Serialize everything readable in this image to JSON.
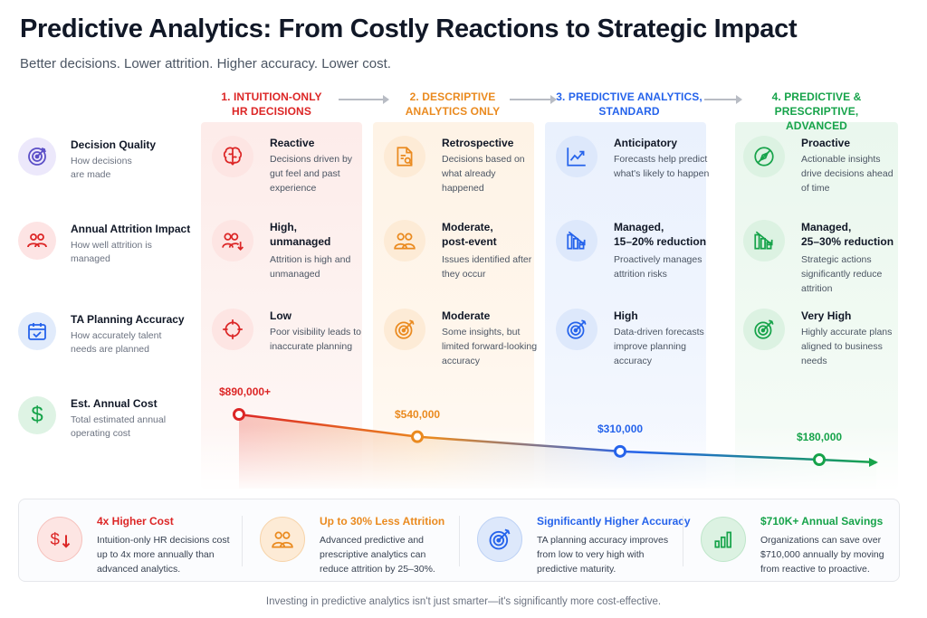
{
  "header": {
    "title": "Predictive Analytics: From Costly Reactions to Strategic Impact",
    "subtitle": "Better decisions. Lower attrition. Higher accuracy. Lower cost."
  },
  "stages": [
    {
      "label": "1. INTUITION-ONLY\nHR DECISIONS",
      "color": "#dc2626"
    },
    {
      "label": "2. DESCRIPTIVE\nANALYTICS ONLY",
      "color": "#ea8a1f"
    },
    {
      "label": "3. PREDICTIVE ANALYTICS,\nSTANDARD",
      "color": "#2563eb"
    },
    {
      "label": "4. PREDICTIVE & PRESCRIPTIVE,\nADVANCED",
      "color": "#16a34a"
    }
  ],
  "rows": [
    {
      "title": "Decision Quality",
      "desc": "How decisions are made",
      "icon": "target-icon"
    },
    {
      "title": "Annual Attrition Impact",
      "desc": "How well attrition is managed",
      "icon": "people-icon"
    },
    {
      "title": "TA Planning Accuracy",
      "desc": "How accurately talent needs are planned",
      "icon": "calendar-check-icon"
    },
    {
      "title": "Est. Annual Cost",
      "desc": "Total estimated annual operating cost",
      "icon": "dollar-icon"
    }
  ],
  "cells": [
    [
      {
        "title": "Reactive",
        "desc": "Decisions driven by gut feel and past experience",
        "icon": "brain-icon"
      },
      {
        "title": "Retrospective",
        "desc": "Decisions based on what already happened",
        "icon": "report-search-icon"
      },
      {
        "title": "Anticipatory",
        "desc": "Forecasts help predict what's likely to happen",
        "icon": "trend-up-icon"
      },
      {
        "title": "Proactive",
        "desc": "Actionable insights drive decisions ahead of time",
        "icon": "compass-icon"
      }
    ],
    [
      {
        "title": "High,\nunmanaged",
        "desc": "Attrition is high and unmanaged",
        "icon": "people-down-icon"
      },
      {
        "title": "Moderate,\npost-event",
        "desc": "Issues identified after they occur",
        "icon": "people-icon"
      },
      {
        "title": "Managed,\n15–20% reduction",
        "desc": "Proactively manages attrition risks",
        "icon": "bars-down-icon"
      },
      {
        "title": "Managed,\n25–30% reduction",
        "desc": "Strategic actions significantly reduce attrition",
        "icon": "bars-down-icon"
      }
    ],
    [
      {
        "title": "Low",
        "desc": "Poor visibility leads to inaccurate planning",
        "icon": "crosshair-icon"
      },
      {
        "title": "Moderate",
        "desc": "Some insights, but limited forward-looking accuracy",
        "icon": "target-arrow-icon"
      },
      {
        "title": "High",
        "desc": "Data-driven forecasts improve planning accuracy",
        "icon": "target-arrow-icon"
      },
      {
        "title": "Very High",
        "desc": "Highly accurate plans aligned to business needs",
        "icon": "target-arrow-icon"
      }
    ]
  ],
  "costs": [
    {
      "label": "$890,000+",
      "value": 890000,
      "color": "#dc2626"
    },
    {
      "label": "$540,000",
      "value": 540000,
      "color": "#ea8a1f"
    },
    {
      "label": "$310,000",
      "value": 310000,
      "color": "#2563eb"
    },
    {
      "label": "$180,000",
      "value": 180000,
      "color": "#16a34a"
    }
  ],
  "summary": [
    {
      "title": "4x Higher Cost",
      "desc": "Intuition-only HR decisions cost up to 4x more annually than advanced analytics.",
      "color": "#dc2626",
      "icon": "dollar-down-icon"
    },
    {
      "title": "Up to 30% Less Attrition",
      "desc": "Advanced predictive and prescriptive analytics can reduce attrition by 25–30%.",
      "color": "#ea8a1f",
      "icon": "people-icon"
    },
    {
      "title": "Significantly Higher Accuracy",
      "desc": "TA planning accuracy improves from low to very high with predictive maturity.",
      "color": "#2563eb",
      "icon": "target-arrow-icon"
    },
    {
      "title": "$710K+ Annual Savings",
      "desc": "Organizations can save over $710,000 annually by moving from reactive to proactive.",
      "color": "#16a34a",
      "icon": "bar-chart-icon"
    }
  ],
  "footer": "Investing in predictive analytics isn't just smarter—it's significantly more cost-effective."
}
